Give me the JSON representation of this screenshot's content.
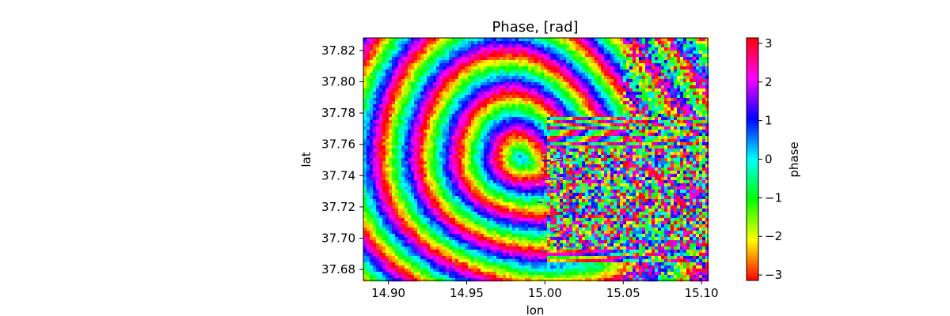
{
  "chart_data": {
    "type": "heatmap",
    "title": "Phase, [rad]",
    "xlabel": "lon",
    "ylabel": "lat",
    "xlim": [
      14.884,
      15.104
    ],
    "ylim": [
      37.673,
      37.828
    ],
    "x_ticks": [
      14.9,
      14.95,
      15.0,
      15.05,
      15.1
    ],
    "x_tick_labels": [
      "14.90",
      "14.95",
      "15.00",
      "15.05",
      "15.10"
    ],
    "y_ticks": [
      37.68,
      37.7,
      37.72,
      37.74,
      37.76,
      37.78,
      37.8,
      37.82
    ],
    "y_tick_labels": [
      "37.68",
      "37.70",
      "37.72",
      "37.74",
      "37.76",
      "37.78",
      "37.80",
      "37.82"
    ],
    "grid": false,
    "colormap": "hsv",
    "colorbar": {
      "label": "phase",
      "range": [
        -3.14159,
        3.14159
      ],
      "ticks": [
        -3,
        -2,
        -1,
        0,
        1,
        2,
        3
      ],
      "tick_labels": [
        "−3",
        "−2",
        "−1",
        "0",
        "1",
        "2",
        "3"
      ]
    },
    "field": {
      "description_kind": "concentric interferometric fringes",
      "center_lon": 14.985,
      "center_lat": 37.751,
      "fringe_spacing_lat": 0.022,
      "fault_lon": 15.002,
      "fault_lat_range": [
        37.692,
        37.758
      ]
    }
  }
}
